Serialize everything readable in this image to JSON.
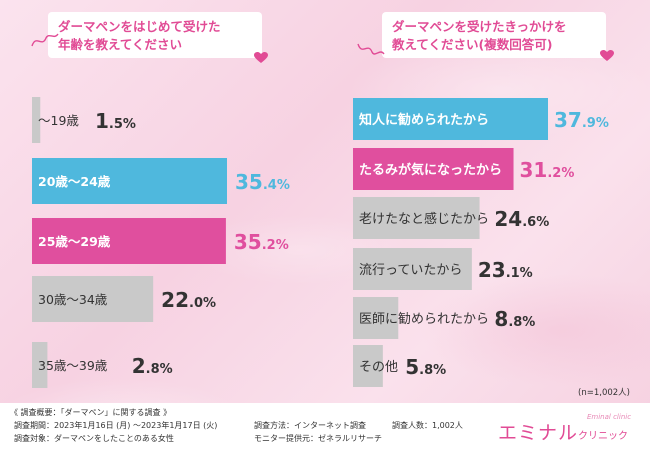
{
  "left_title": {
    "line1": "ダーマペンをはじめて受けた",
    "line2": "年齢を教えてください"
  },
  "right_title": {
    "line1": "ダーマペンを受けたきっかけを",
    "line2": "教えてください(複数回答可)"
  },
  "colors": {
    "blue": "#4fb8dd",
    "pink": "#e04f9e",
    "gray": "#c9c9c9",
    "title_pink": "#e14b95"
  },
  "chart_data": [
    {
      "type": "bar",
      "orientation": "horizontal",
      "title": "ダーマペンをはじめて受けた年齢を教えてください",
      "categories": [
        "～19歳",
        "20歳～24歳",
        "25歳～29歳",
        "30歳～34歳",
        "35歳～39歳"
      ],
      "values": [
        1.5,
        35.4,
        35.2,
        22.0,
        2.8
      ],
      "value_labels": [
        "1.5%",
        "35.4%",
        "35.2%",
        "22.0%",
        "2.8%"
      ],
      "bar_colors": [
        "gray",
        "blue",
        "pink",
        "gray",
        "gray"
      ],
      "unit": "%",
      "grid": false
    },
    {
      "type": "bar",
      "orientation": "horizontal",
      "title": "ダーマペンを受けたきっかけを教えてください(複数回答可)",
      "categories": [
        "知人に勧められたから",
        "たるみが気になったから",
        "老けたなと感じたから",
        "流行っていたから",
        "医師に勧められたから",
        "その他"
      ],
      "values": [
        37.9,
        31.2,
        24.6,
        23.1,
        8.8,
        5.8
      ],
      "value_labels": [
        "37.9%",
        "31.2%",
        "24.6%",
        "23.1%",
        "8.8%",
        "5.8%"
      ],
      "bar_colors": [
        "blue",
        "pink",
        "gray",
        "gray",
        "gray",
        "gray"
      ],
      "unit": "%",
      "grid": false
    }
  ],
  "sample_note": "(n=1,002人)",
  "footer": {
    "heading": "《 調査概要：「ダーマペン」に関する調査 》",
    "period": "調査期間：2023年1月16日 (月) ～2023年1月17日 (火)",
    "target": "調査対象：ダーマペンをしたことのある女性",
    "method": "調査方法：インターネット調査",
    "provider": "モニター提供元：ゼネラルリサーチ",
    "count": "調査人数：1,002人"
  },
  "brand": {
    "name": "エミナル",
    "sub": "クリニック",
    "script": "Eminal clinic"
  }
}
